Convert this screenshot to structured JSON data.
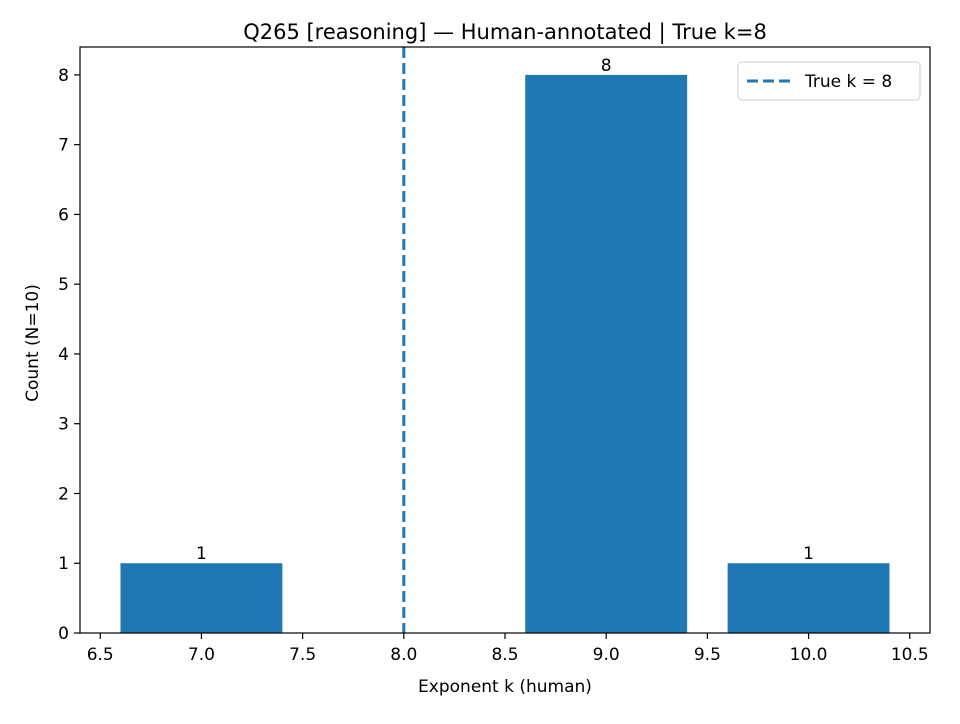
{
  "chart_data": {
    "type": "bar",
    "title": "Q265 [reasoning] — Human-annotated | True k=8",
    "xlabel": "Exponent k (human)",
    "ylabel": "Count (N=10)",
    "xlim": [
      6.4,
      10.6
    ],
    "ylim": [
      0,
      8.4
    ],
    "xticks": [
      6.5,
      7.0,
      7.5,
      8.0,
      8.5,
      9.0,
      9.5,
      10.0,
      10.5
    ],
    "xtick_labels": [
      "6.5",
      "7.0",
      "7.5",
      "8.0",
      "8.5",
      "9.0",
      "9.5",
      "10.0",
      "10.5"
    ],
    "yticks": [
      0,
      1,
      2,
      3,
      4,
      5,
      6,
      7,
      8
    ],
    "ytick_labels": [
      "0",
      "1",
      "2",
      "3",
      "4",
      "5",
      "6",
      "7",
      "8"
    ],
    "bars": [
      {
        "x": 7,
        "value": 1,
        "label": "1"
      },
      {
        "x": 9,
        "value": 8,
        "label": "8"
      },
      {
        "x": 10,
        "value": 1,
        "label": "1"
      }
    ],
    "bar_width": 0.8,
    "bar_color": "#1f77b4",
    "reference_line": {
      "x": 8,
      "style": "dashed",
      "color": "#1f77b4",
      "legend_label": "True k = 8"
    },
    "legend_position": "top-right",
    "grid": false
  }
}
